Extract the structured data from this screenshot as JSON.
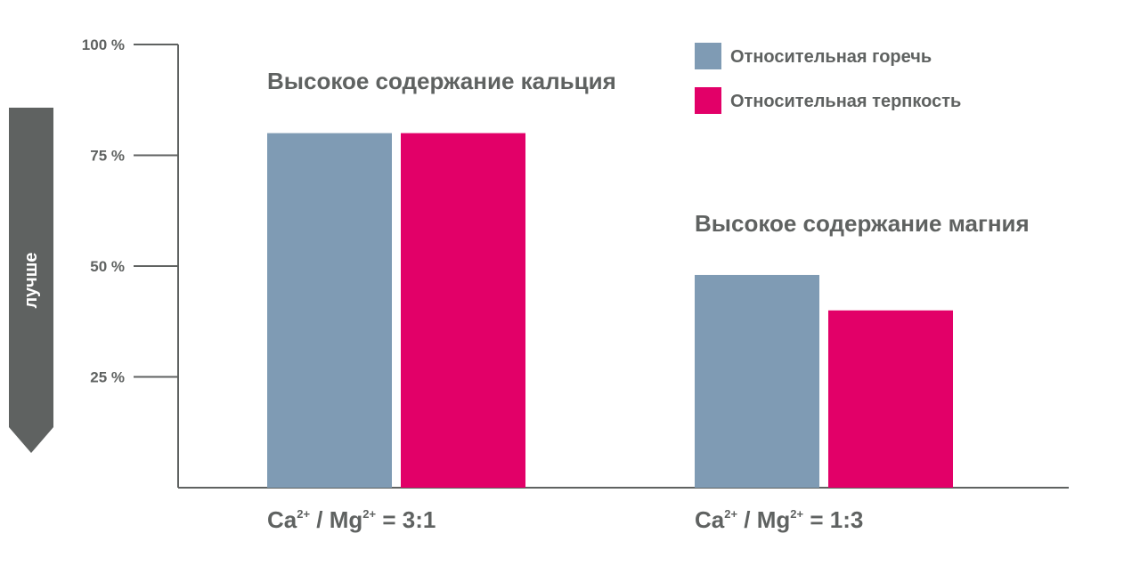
{
  "chart_data": {
    "type": "bar",
    "categories": [
      "Ca2+ / Mg2+ = 3:1",
      "Ca2+ / Mg2+ = 1:3"
    ],
    "category_labels": [
      [
        {
          "t": "Ca"
        },
        {
          "t": "2+",
          "sup": true
        },
        {
          "t": " / Mg"
        },
        {
          "t": "2+",
          "sup": true
        },
        {
          "t": " = 3:1"
        }
      ],
      [
        {
          "t": "Ca"
        },
        {
          "t": "2+",
          "sup": true
        },
        {
          "t": " / Mg"
        },
        {
          "t": "2+",
          "sup": true
        },
        {
          "t": " = 1:3"
        }
      ]
    ],
    "series": [
      {
        "name": "Относительная горечь",
        "color": "#7f9bb4",
        "values": [
          80,
          48
        ]
      },
      {
        "name": "Относительная терпкость",
        "color": "#e20068",
        "values": [
          80,
          40
        ]
      }
    ],
    "annotations": [
      "Высокое содержание кальция",
      "Высокое содержание магния"
    ],
    "yticks": [
      {
        "value": 100,
        "label": "100 %"
      },
      {
        "value": 75,
        "label": "75 %"
      },
      {
        "value": 50,
        "label": "50 %"
      },
      {
        "value": 25,
        "label": "25 %"
      }
    ],
    "ylim": [
      0,
      100
    ],
    "ylabel": "лучше",
    "legend_position": "top-right",
    "grid": false,
    "axis_color": "#5f6261"
  }
}
